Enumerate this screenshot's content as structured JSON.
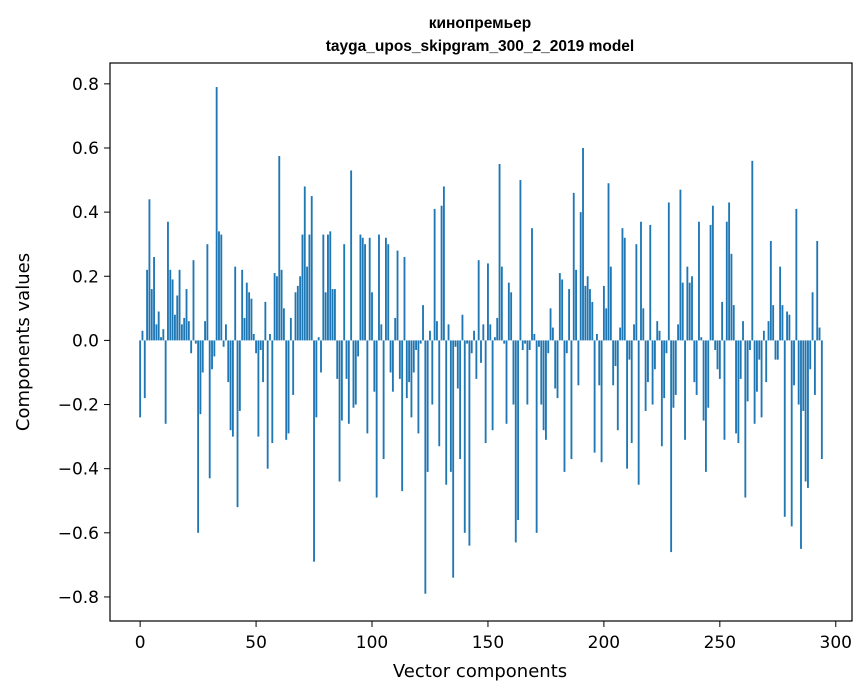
{
  "chart_data": {
    "type": "bar",
    "title": "кинопремьер",
    "subtitle": "tayga_upos_skipgram_300_2_2019 model",
    "xlabel": "Vector components",
    "ylabel": "Components values",
    "xlim": [
      -13,
      307
    ],
    "ylim": [
      -0.875,
      0.865
    ],
    "xticks": [
      0,
      50,
      100,
      150,
      200,
      250,
      300
    ],
    "xtick_labels": [
      "0",
      "50",
      "100",
      "150",
      "200",
      "250",
      "300"
    ],
    "yticks": [
      0.8,
      0.6,
      0.4,
      0.2,
      0.0,
      -0.2,
      -0.4,
      -0.6,
      -0.8
    ],
    "ytick_labels": [
      "0.8",
      "0.6",
      "0.4",
      "0.2",
      "0.0",
      "−0.2",
      "−0.4",
      "−0.6",
      "−0.8"
    ],
    "bar_color": "#1f77b4",
    "series": [
      {
        "name": "кинопремьер",
        "values": [
          -0.24,
          0.03,
          -0.18,
          0.22,
          0.44,
          0.16,
          0.26,
          0.05,
          0.09,
          0.01,
          0.035,
          -0.26,
          0.37,
          0.22,
          0.19,
          0.08,
          0.14,
          0.22,
          0.05,
          0.07,
          0.16,
          0.06,
          -0.04,
          0.25,
          -0.01,
          -0.6,
          -0.23,
          -0.1,
          0.06,
          0.3,
          -0.43,
          -0.09,
          -0.05,
          0.79,
          0.34,
          0.33,
          -0.02,
          0.05,
          -0.13,
          -0.28,
          -0.3,
          0.23,
          -0.52,
          -0.22,
          0.22,
          0.07,
          0.18,
          0.15,
          0.13,
          0.02,
          -0.04,
          -0.3,
          -0.03,
          -0.13,
          0.12,
          -0.4,
          0.02,
          -0.32,
          0.21,
          0.2,
          0.575,
          0.22,
          0.1,
          -0.31,
          -0.29,
          0.07,
          -0.17,
          0.15,
          0.17,
          0.2,
          0.33,
          0.48,
          0.23,
          0.33,
          0.45,
          -0.69,
          -0.24,
          0.01,
          -0.1,
          0.33,
          0.15,
          0.33,
          0.34,
          0.16,
          0.16,
          -0.12,
          -0.44,
          -0.25,
          0.3,
          -0.12,
          -0.26,
          0.53,
          -0.21,
          -0.2,
          -0.05,
          0.33,
          0.32,
          0.3,
          -0.29,
          0.32,
          0.15,
          -0.16,
          -0.49,
          0.33,
          0.05,
          -0.37,
          0.32,
          0.3,
          -0.1,
          -0.16,
          0.07,
          0.28,
          -0.12,
          -0.47,
          0.26,
          -0.18,
          -0.13,
          -0.24,
          -0.1,
          -0.03,
          -0.29,
          -0.01,
          0.11,
          -0.79,
          -0.41,
          0.03,
          -0.2,
          0.41,
          0.06,
          -0.33,
          0.42,
          0.48,
          -0.45,
          0.05,
          -0.41,
          -0.74,
          -0.02,
          -0.15,
          -0.37,
          0.08,
          -0.6,
          -0.01,
          -0.64,
          -0.04,
          0.03,
          -0.12,
          0.25,
          -0.07,
          0.05,
          -0.32,
          0.24,
          0.05,
          -0.28,
          0.01,
          0.07,
          0.55,
          0.23,
          -0.01,
          -0.26,
          0.18,
          0.15,
          -0.2,
          -0.63,
          -0.56,
          0.5,
          -0.03,
          -0.01,
          -0.2,
          -0.03,
          0.35,
          0.02,
          -0.6,
          -0.02,
          -0.2,
          -0.28,
          -0.31,
          -0.04,
          0.1,
          0.04,
          -0.15,
          -0.18,
          0.21,
          0.19,
          -0.41,
          -0.04,
          0.16,
          -0.37,
          0.46,
          0.22,
          -0.14,
          0.4,
          0.6,
          0.17,
          0.2,
          0.16,
          0.12,
          -0.35,
          0.02,
          -0.14,
          -0.38,
          0.17,
          0.1,
          0.49,
          0.23,
          -0.14,
          -0.08,
          -0.28,
          0.04,
          0.35,
          0.32,
          -0.4,
          -0.06,
          -0.32,
          0.05,
          0.3,
          -0.45,
          0.37,
          0.1,
          -0.22,
          -0.13,
          0.36,
          -0.2,
          -0.09,
          0.06,
          0.03,
          -0.33,
          -0.18,
          -0.04,
          0.43,
          -0.66,
          -0.21,
          -0.17,
          0.05,
          0.47,
          0.18,
          -0.31,
          0.23,
          0.18,
          0.2,
          -0.13,
          -0.17,
          0.37,
          0.01,
          -0.25,
          -0.41,
          -0.21,
          0.36,
          0.42,
          -0.03,
          -0.09,
          -0.12,
          0.12,
          -0.31,
          0.37,
          0.43,
          0.27,
          0.11,
          -0.29,
          -0.32,
          -0.12,
          0.06,
          -0.49,
          -0.19,
          -0.03,
          0.56,
          -0.26,
          -0.16,
          -0.06,
          -0.24,
          0.03,
          -0.13,
          0.06,
          0.31,
          0.11,
          -0.06,
          -0.06,
          0.23,
          0.11,
          -0.55,
          0.09,
          0.08,
          -0.58,
          -0.14,
          0.41,
          -0.2,
          -0.65,
          -0.22,
          -0.44,
          -0.46,
          -0.09,
          0.15,
          -0.17,
          0.31,
          0.04,
          -0.37
        ]
      }
    ]
  }
}
